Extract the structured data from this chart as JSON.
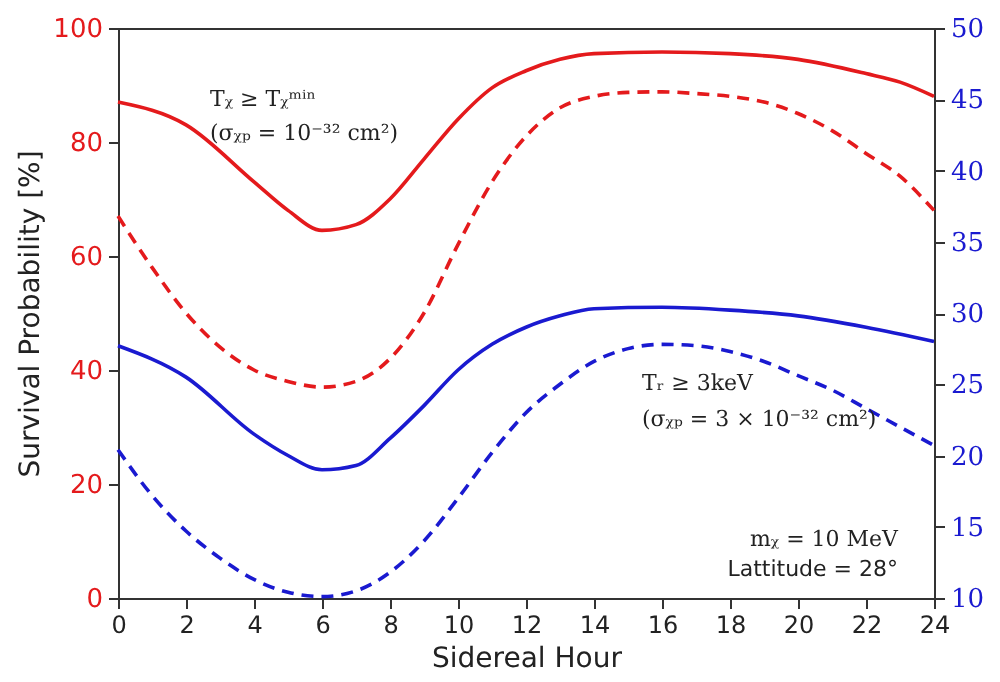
{
  "chart_data": {
    "type": "line",
    "xlabel": "Sidereal Hour",
    "ylabel": "Survival Probability [%]",
    "xlim": [
      0,
      24
    ],
    "xticks": [
      0,
      2,
      4,
      6,
      8,
      10,
      12,
      14,
      16,
      18,
      20,
      22,
      24
    ],
    "ylim": [
      0,
      100
    ],
    "yticks": [
      0,
      20,
      40,
      60,
      80,
      100
    ],
    "y2lim": [
      10,
      50
    ],
    "y2ticks": [
      10,
      15,
      20,
      25,
      30,
      35,
      40,
      45,
      50
    ],
    "grid": false,
    "annotations": [
      "Tᵪ ≥ Tᵪᵐⁱⁿ",
      "(σᵪₚ = 10⁻³² cm²)",
      "Tᵣ ≥ 3keV",
      "(σᵪₚ = 3 × 10⁻³² cm²)",
      "mᵪ = 10 MeV",
      "Lattitude = 28°"
    ],
    "series": [
      {
        "color": "#e41a1c",
        "line_style": "solid",
        "x": [
          0,
          2,
          4,
          5,
          6,
          7,
          8,
          9,
          10,
          11,
          12,
          13,
          14,
          16,
          18,
          20,
          22,
          23,
          24
        ],
        "values": [
          87,
          83,
          73,
          68,
          64.5,
          65.5,
          70,
          77,
          84,
          89.5,
          92.5,
          94.5,
          95.5,
          95.8,
          95.5,
          94.5,
          92,
          90.5,
          88
        ]
      },
      {
        "color": "#e41a1c",
        "line_style": "dashed",
        "x": [
          0,
          1,
          2,
          3,
          4,
          5,
          6,
          7,
          8,
          9,
          10,
          11,
          12,
          13,
          14,
          15,
          16,
          17,
          18,
          19,
          20,
          21,
          22,
          23,
          24
        ],
        "values": [
          67,
          58,
          50,
          44,
          40,
          38,
          37,
          38,
          42,
          50,
          62,
          73,
          81,
          86,
          88,
          88.7,
          88.8,
          88.5,
          88,
          87,
          85,
          82,
          78,
          74,
          68
        ]
      },
      {
        "color": "#1a1ad0",
        "line_style": "solid",
        "axis": "y2",
        "x": [
          0,
          2,
          4,
          5,
          6,
          7,
          8,
          9,
          10,
          11,
          12,
          13,
          14,
          16,
          18,
          20,
          22,
          24
        ],
        "values": [
          27.7,
          25.5,
          21.5,
          20,
          19,
          19.3,
          21.2,
          23.5,
          26,
          27.8,
          29,
          29.8,
          30.3,
          30.4,
          30.2,
          29.8,
          29,
          28
        ]
      },
      {
        "color": "#1a1ad0",
        "line_style": "dashed",
        "axis": "y2",
        "x": [
          0,
          1,
          2,
          3,
          4,
          5,
          6,
          7,
          8,
          9,
          10,
          11,
          12,
          13,
          14,
          15,
          16,
          17,
          18,
          19,
          20,
          21,
          22,
          23,
          24
        ],
        "values": [
          20.4,
          17.2,
          14.7,
          12.8,
          11.3,
          10.4,
          10.1,
          10.5,
          11.8,
          14,
          17,
          20.2,
          23,
          25,
          26.6,
          27.5,
          27.8,
          27.7,
          27.3,
          26.6,
          25.6,
          24.6,
          23.3,
          22,
          20.7
        ]
      }
    ]
  }
}
